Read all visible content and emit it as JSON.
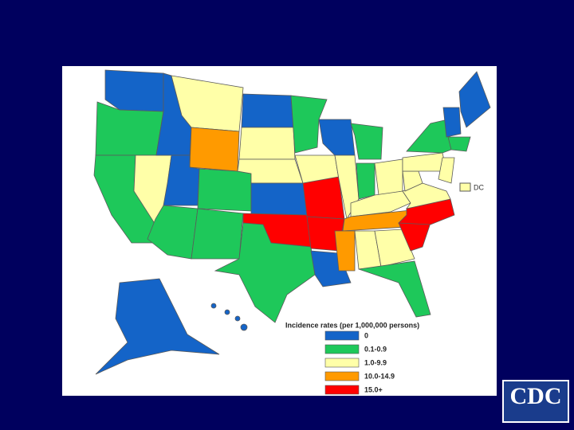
{
  "map": {
    "dc_label": "DC",
    "legend": {
      "title": "Incidence rates (per 1,000,000 persons)",
      "items": [
        {
          "label": "0",
          "color": "#1464c8"
        },
        {
          "label": "0.1-0.9",
          "color": "#1ec85a"
        },
        {
          "label": "1.0-9.9",
          "color": "#ffffa8"
        },
        {
          "label": "10.0-14.9",
          "color": "#ff9a00"
        },
        {
          "label": "15.0+",
          "color": "#ff0000"
        }
      ]
    }
  },
  "logo": {
    "text": "CDC"
  }
}
